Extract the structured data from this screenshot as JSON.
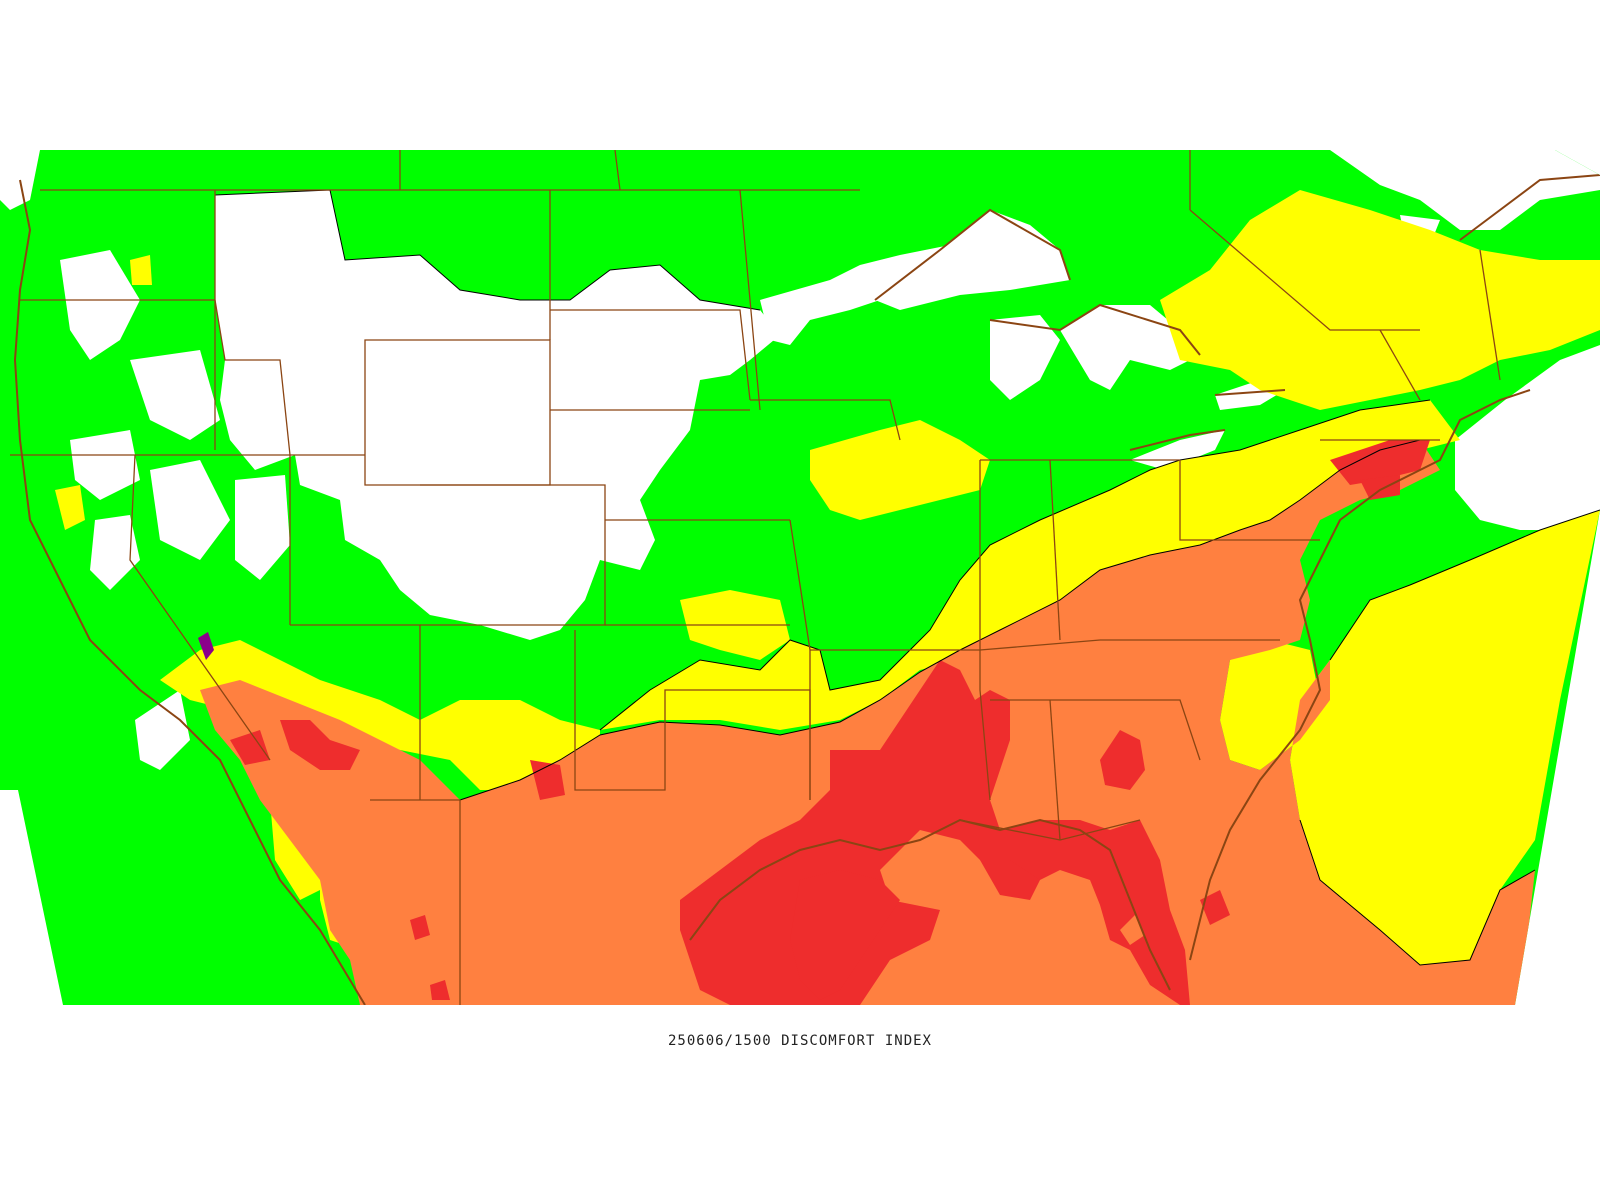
{
  "map": {
    "caption": "250606/1500 DISCOMFORT INDEX",
    "colors": {
      "background": "#ffffff",
      "comfortable_none": "#ffffff",
      "low": "#00ff00",
      "moderate": "#ffff00",
      "high": "#ff8040",
      "very_high": "#ee2d2d",
      "extreme": "#8b008b",
      "boundaries": "#8b4513",
      "contours": "#000000"
    }
  }
}
